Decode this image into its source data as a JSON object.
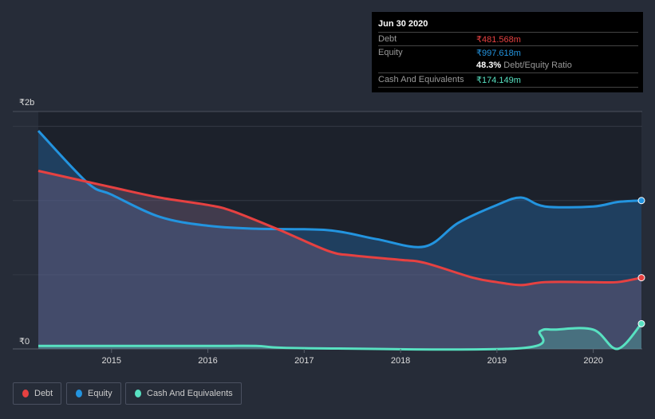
{
  "tooltip": {
    "date": "Jun 30 2020",
    "debt_label": "Debt",
    "debt_value": "₹481.568m",
    "equity_label": "Equity",
    "equity_value": "₹997.618m",
    "ratio_value": "48.3%",
    "ratio_label": "Debt/Equity Ratio",
    "cash_label": "Cash And Equivalents",
    "cash_value": "₹174.149m"
  },
  "chart_data": {
    "type": "area",
    "ylabel_top": "₹2b",
    "ylabel_bottom": "₹0",
    "ylim": [
      0,
      1.6
    ],
    "xlim": [
      2014.24,
      2020.5
    ],
    "x_ticks": [
      "2015",
      "2016",
      "2017",
      "2018",
      "2019",
      "2020"
    ],
    "series": [
      {
        "name": "Equity",
        "color": "#2394df",
        "points": [
          [
            2014.24,
            1.47
          ],
          [
            2014.75,
            1.12
          ],
          [
            2015,
            1.04
          ],
          [
            2015.5,
            0.89
          ],
          [
            2016,
            0.83
          ],
          [
            2016.5,
            0.81
          ],
          [
            2017.25,
            0.8
          ],
          [
            2017.75,
            0.74
          ],
          [
            2018.25,
            0.69
          ],
          [
            2018.6,
            0.85
          ],
          [
            2019,
            0.97
          ],
          [
            2019.25,
            1.02
          ],
          [
            2019.5,
            0.96
          ],
          [
            2020,
            0.96
          ],
          [
            2020.25,
            0.99
          ],
          [
            2020.5,
            1.0
          ]
        ]
      },
      {
        "name": "Debt",
        "color": "#e64141",
        "points": [
          [
            2014.24,
            1.2
          ],
          [
            2015,
            1.09
          ],
          [
            2015.5,
            1.02
          ],
          [
            2016,
            0.97
          ],
          [
            2016.25,
            0.93
          ],
          [
            2016.75,
            0.8
          ],
          [
            2017.25,
            0.66
          ],
          [
            2017.5,
            0.63
          ],
          [
            2018,
            0.6
          ],
          [
            2018.25,
            0.58
          ],
          [
            2018.75,
            0.48
          ],
          [
            2019,
            0.45
          ],
          [
            2019.25,
            0.43
          ],
          [
            2019.5,
            0.45
          ],
          [
            2020,
            0.45
          ],
          [
            2020.25,
            0.45
          ],
          [
            2020.5,
            0.48
          ]
        ]
      },
      {
        "name": "Cash And Equivalents",
        "color": "#58e1c1",
        "points": [
          [
            2014.24,
            0.02
          ],
          [
            2016,
            0.02
          ],
          [
            2016.5,
            0.02
          ],
          [
            2017,
            0.005
          ],
          [
            2019.25,
            0.005
          ],
          [
            2019.45,
            0.12
          ],
          [
            2019.6,
            0.13
          ],
          [
            2020,
            0.13
          ],
          [
            2020.25,
            0.0
          ],
          [
            2020.5,
            0.17
          ]
        ]
      }
    ]
  },
  "legend": [
    {
      "label": "Debt",
      "color": "#e64141"
    },
    {
      "label": "Equity",
      "color": "#2394df"
    },
    {
      "label": "Cash And Equivalents",
      "color": "#58e1c1"
    }
  ]
}
